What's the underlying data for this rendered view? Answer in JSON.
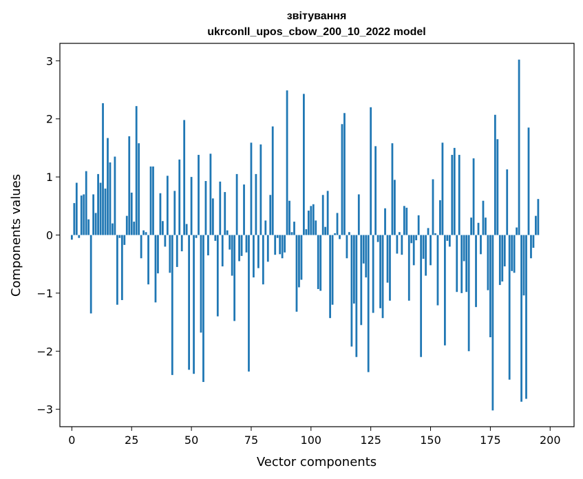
{
  "chart_data": {
    "type": "bar",
    "title_line1": "звітування",
    "title_line2": "ukrconll_upos_cbow_200_10_2022 model",
    "xlabel": "Vector components",
    "ylabel": "Components values",
    "xlim": [
      -5,
      210
    ],
    "ylim": [
      -3.3,
      3.3
    ],
    "xticks": [
      0,
      25,
      50,
      75,
      100,
      125,
      150,
      175,
      200
    ],
    "xtick_labels": [
      "0",
      "25",
      "50",
      "75",
      "100",
      "125",
      "150",
      "175",
      "200"
    ],
    "yticks": [
      3,
      2,
      1,
      0,
      -1,
      -2,
      -3
    ],
    "ytick_labels": [
      "3",
      "2",
      "1",
      "0",
      "−1",
      "−2",
      "−3"
    ],
    "bar_color": "#1f77b4",
    "grid": false,
    "values": [
      -0.08,
      0.55,
      0.9,
      -0.05,
      0.68,
      0.7,
      1.1,
      0.27,
      -1.35,
      0.7,
      0.38,
      1.05,
      0.9,
      2.27,
      0.8,
      1.67,
      1.25,
      0.2,
      1.35,
      -1.2,
      -0.05,
      -1.12,
      -0.17,
      0.33,
      1.7,
      0.73,
      0.23,
      2.22,
      1.58,
      -0.4,
      0.08,
      0.05,
      -0.85,
      1.18,
      1.18,
      -1.16,
      -0.66,
      0.72,
      0.24,
      -0.2,
      1.02,
      -0.65,
      -2.41,
      0.76,
      -0.55,
      1.3,
      -0.28,
      1.98,
      0.19,
      -2.32,
      1.0,
      -2.39,
      -0.05,
      1.38,
      -1.68,
      -2.53,
      0.93,
      -0.35,
      1.4,
      0.63,
      -0.1,
      -1.4,
      0.92,
      -0.54,
      0.74,
      0.08,
      -0.25,
      -0.7,
      -1.48,
      1.05,
      -0.45,
      -0.36,
      0.87,
      -0.3,
      -2.35,
      1.59,
      -0.73,
      1.05,
      -0.57,
      1.56,
      -0.85,
      0.25,
      -0.46,
      0.69,
      1.87,
      -0.34,
      -0.05,
      -0.33,
      -0.4,
      -0.3,
      2.49,
      0.59,
      0.05,
      0.23,
      -1.32,
      -0.9,
      -0.77,
      2.43,
      0.1,
      0.42,
      0.5,
      0.53,
      0.25,
      -0.93,
      -0.96,
      0.69,
      0.14,
      0.76,
      -1.43,
      -1.2,
      0.03,
      0.38,
      -0.07,
      1.91,
      2.1,
      -0.4,
      0.05,
      -1.92,
      -1.18,
      -2.1,
      0.7,
      -1.55,
      -0.49,
      -0.73,
      -2.36,
      2.2,
      -1.34,
      1.53,
      -0.12,
      -1.26,
      -1.43,
      0.46,
      -0.82,
      -1.13,
      1.58,
      0.95,
      -0.32,
      0.05,
      -0.34,
      0.5,
      0.47,
      -1.13,
      -0.14,
      -0.52,
      -0.09,
      0.34,
      -2.1,
      -0.41,
      -0.7,
      0.12,
      -0.52,
      0.96,
      0.03,
      -1.21,
      0.6,
      1.59,
      -1.9,
      -0.1,
      -0.2,
      1.38,
      1.5,
      -0.98,
      1.38,
      -1.0,
      -0.45,
      -0.98,
      -2.0,
      0.3,
      1.32,
      -1.24,
      0.21,
      -0.33,
      0.59,
      0.3,
      -0.95,
      -1.76,
      -3.02,
      2.07,
      1.65,
      -0.86,
      -0.8,
      -0.54,
      1.13,
      -2.49,
      -0.62,
      -0.65,
      0.13,
      3.02,
      -2.87,
      -1.04,
      -2.82,
      1.85,
      -0.4,
      -0.22,
      0.33,
      0.62
    ]
  }
}
